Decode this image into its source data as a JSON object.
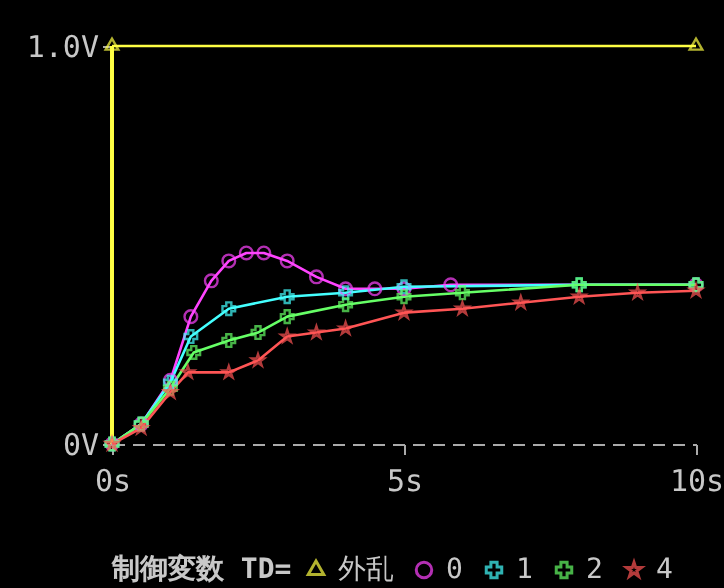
{
  "chart_data": {
    "type": "line",
    "legend_title": "制御変数 TD=",
    "legend": "bottom",
    "grid": false,
    "ref_lines": [
      {
        "axis": "x",
        "value": 0,
        "color": "#ffff44"
      }
    ],
    "xlim": [
      0,
      10
    ],
    "xticks": [
      {
        "value": 0,
        "label": "0s"
      },
      {
        "value": 5,
        "label": "5s"
      },
      {
        "value": 10,
        "label": "10s"
      }
    ],
    "ylim": [
      0,
      1
    ],
    "yticks": [
      {
        "value": 0,
        "label": "0V"
      },
      {
        "value": 1,
        "label": "1.0V"
      }
    ],
    "series": [
      {
        "name": "外乱",
        "color": "#ffff44",
        "marker": "triangle",
        "x": [
          0,
          10
        ],
        "values": [
          1,
          1
        ]
      },
      {
        "name": "0",
        "color": "#ff44ff",
        "marker": "circle",
        "x": [
          0,
          0.5,
          1,
          1.35,
          1.7,
          2,
          2.3,
          2.6,
          3,
          3.5,
          4,
          4.5,
          5,
          5.8,
          10
        ],
        "values": [
          0,
          0.05,
          0.16,
          0.32,
          0.41,
          0.46,
          0.48,
          0.48,
          0.46,
          0.42,
          0.39,
          0.39,
          0.39,
          0.4,
          0.4
        ]
      },
      {
        "name": "1",
        "color": "#44ffff",
        "marker": "cross",
        "x": [
          0,
          0.5,
          1,
          1.35,
          2,
          3,
          4,
          5,
          8,
          10
        ],
        "values": [
          0,
          0.05,
          0.155,
          0.27,
          0.34,
          0.37,
          0.38,
          0.395,
          0.4,
          0.4
        ]
      },
      {
        "name": "2",
        "color": "#66ff66",
        "marker": "cross",
        "x": [
          0,
          0.5,
          1,
          1.4,
          2,
          2.5,
          3,
          4,
          5,
          6,
          8,
          10
        ],
        "values": [
          0,
          0.05,
          0.14,
          0.23,
          0.26,
          0.28,
          0.32,
          0.35,
          0.37,
          0.38,
          0.4,
          0.4
        ]
      },
      {
        "name": "4",
        "color": "#ff5555",
        "marker": "star",
        "x": [
          0,
          0.5,
          1,
          1.3,
          2,
          2.5,
          3,
          3.5,
          4,
          5,
          6,
          7,
          8,
          9,
          10
        ],
        "values": [
          0,
          0.04,
          0.13,
          0.18,
          0.18,
          0.21,
          0.27,
          0.28,
          0.29,
          0.33,
          0.34,
          0.355,
          0.37,
          0.38,
          0.385
        ]
      }
    ]
  }
}
